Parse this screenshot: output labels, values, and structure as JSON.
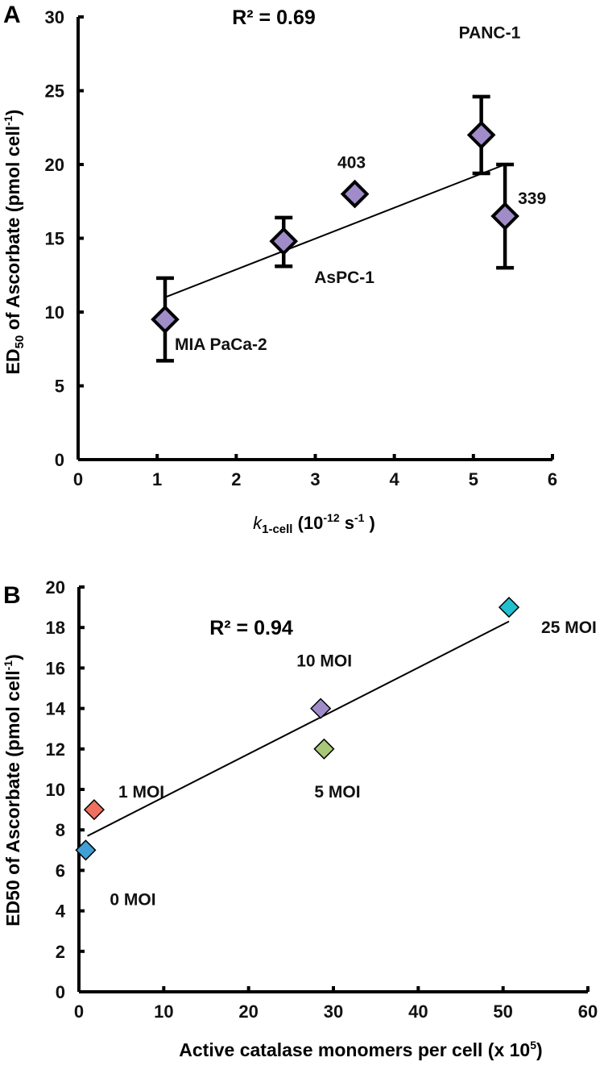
{
  "chart_data": [
    {
      "panel": "A",
      "type": "scatter",
      "annotation": "R² = 0.69",
      "xlabel": {
        "italic": "k",
        "sub": "1-cell",
        "rest": " (10",
        "sup": "-12",
        "rest2": " s",
        "sup2": "-1",
        "end": " )"
      },
      "ylabel": {
        "pre": "ED",
        "sub": "50",
        "mid": " of Ascorbate (pmol cell",
        "sup": "-1",
        "end": ")"
      },
      "xlim": [
        0,
        6
      ],
      "ylim": [
        0,
        30
      ],
      "xticks": [
        0,
        1,
        2,
        3,
        4,
        5,
        6
      ],
      "yticks": [
        0,
        5,
        10,
        15,
        20,
        25,
        30
      ],
      "marker_color": "#a08cc8",
      "points": [
        {
          "label": "MIA PaCa-2",
          "x": 1.1,
          "y": 9.5,
          "err_low": 6.7,
          "err_high": 12.3
        },
        {
          "label": "AsPC-1",
          "x": 2.6,
          "y": 14.8,
          "err_low": 13.1,
          "err_high": 16.4
        },
        {
          "label": "403",
          "x": 3.5,
          "y": 18.0
        },
        {
          "label": "PANC-1",
          "x": 5.1,
          "y": 22.0,
          "err_low": 19.4,
          "err_high": 24.6
        },
        {
          "label": "339",
          "x": 5.4,
          "y": 16.5,
          "err_low": 13.0,
          "err_high": 20.0
        }
      ],
      "trendline": [
        [
          1.1,
          11.0
        ],
        [
          5.4,
          20.0
        ]
      ]
    },
    {
      "panel": "B",
      "type": "scatter",
      "annotation": "R² = 0.94",
      "xlabel": {
        "pre": "Active catalase monomers per cell (x 10",
        "sup": "5",
        "end": ")"
      },
      "ylabel": {
        "pre": "ED50 of Ascorbate (pmol cell",
        "sup": "-1",
        "end": ")"
      },
      "xlim": [
        0,
        60
      ],
      "ylim": [
        0,
        20
      ],
      "xticks": [
        0,
        10,
        20,
        30,
        40,
        50,
        60
      ],
      "yticks": [
        0,
        2,
        4,
        6,
        8,
        10,
        12,
        14,
        16,
        18,
        20
      ],
      "points": [
        {
          "label": "0 MOI",
          "x": 0.8,
          "y": 7.0,
          "color": "#3fa0d8"
        },
        {
          "label": "1 MOI",
          "x": 1.8,
          "y": 9.0,
          "color": "#f07060"
        },
        {
          "label": "10 MOI",
          "x": 28.5,
          "y": 14.0,
          "color": "#a08cc8"
        },
        {
          "label": "5 MOI",
          "x": 28.9,
          "y": 12.0,
          "color": "#a8c878"
        },
        {
          "label": "25 MOI",
          "x": 50.7,
          "y": 19.0,
          "color": "#20c0d0"
        }
      ],
      "trendline": [
        [
          1.0,
          7.7
        ],
        [
          50.7,
          18.3
        ]
      ]
    }
  ]
}
